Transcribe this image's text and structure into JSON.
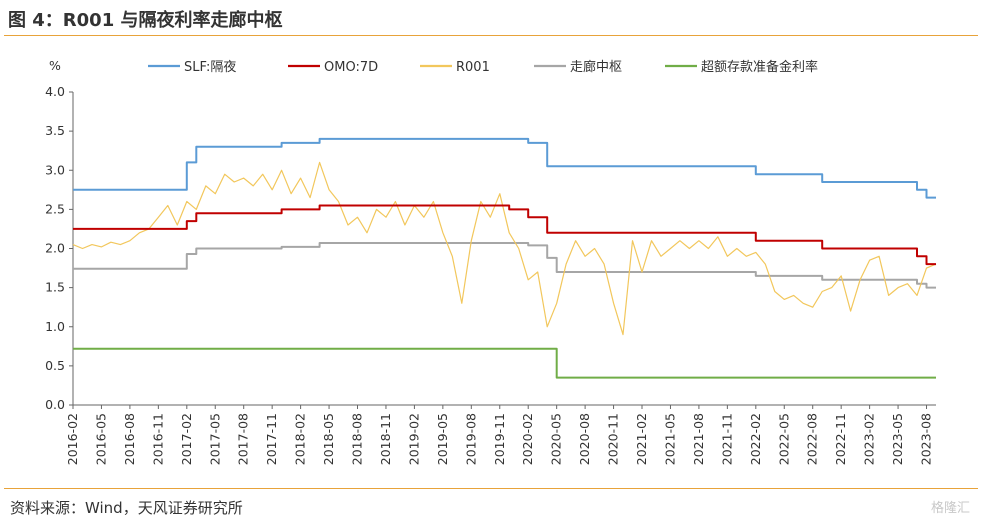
{
  "header": {
    "title": "图 4：R001 与隔夜利率走廊中枢"
  },
  "footer": {
    "source": "资料来源：Wind，天风证券研究所",
    "watermark": "格隆汇"
  },
  "chart_data": {
    "type": "line",
    "ylabel": "%",
    "ylim": [
      0,
      4.0
    ],
    "yticks": [
      "0.0",
      "0.5",
      "1.0",
      "1.5",
      "2.0",
      "2.5",
      "3.0",
      "3.5",
      "4.0"
    ],
    "xlim": [
      "2016-02",
      "2023-09"
    ],
    "xticks": [
      "2016-02",
      "2016-05",
      "2016-08",
      "2016-11",
      "2017-02",
      "2017-05",
      "2017-08",
      "2017-11",
      "2018-02",
      "2018-05",
      "2018-08",
      "2018-11",
      "2019-02",
      "2019-05",
      "2019-08",
      "2019-11",
      "2020-02",
      "2020-05",
      "2020-08",
      "2020-11",
      "2021-02",
      "2021-05",
      "2021-08",
      "2021-11",
      "2022-02",
      "2022-05",
      "2022-08",
      "2022-11",
      "2023-02",
      "2023-05",
      "2023-08"
    ],
    "legend_position": "top",
    "grid": false,
    "series": [
      {
        "name": "SLF:隔夜",
        "color": "#5B9BD5",
        "step": true,
        "points": [
          [
            "2016-02",
            2.75
          ],
          [
            "2017-01",
            2.75
          ],
          [
            "2017-02",
            3.1
          ],
          [
            "2017-03",
            3.3
          ],
          [
            "2017-12",
            3.35
          ],
          [
            "2018-03",
            3.35
          ],
          [
            "2018-04",
            3.4
          ],
          [
            "2020-01",
            3.4
          ],
          [
            "2020-02",
            3.35
          ],
          [
            "2020-04",
            3.05
          ],
          [
            "2022-01",
            3.05
          ],
          [
            "2022-02",
            2.95
          ],
          [
            "2022-08",
            2.95
          ],
          [
            "2022-09",
            2.85
          ],
          [
            "2023-06",
            2.85
          ],
          [
            "2023-07",
            2.75
          ],
          [
            "2023-08",
            2.65
          ],
          [
            "2023-09",
            2.65
          ]
        ]
      },
      {
        "name": "OMO:7D",
        "color": "#C00000",
        "step": true,
        "points": [
          [
            "2016-02",
            2.25
          ],
          [
            "2017-01",
            2.25
          ],
          [
            "2017-02",
            2.35
          ],
          [
            "2017-03",
            2.45
          ],
          [
            "2017-12",
            2.5
          ],
          [
            "2018-03",
            2.5
          ],
          [
            "2018-04",
            2.55
          ],
          [
            "2019-11",
            2.55
          ],
          [
            "2019-12",
            2.5
          ],
          [
            "2020-02",
            2.4
          ],
          [
            "2020-04",
            2.2
          ],
          [
            "2022-01",
            2.2
          ],
          [
            "2022-02",
            2.1
          ],
          [
            "2022-08",
            2.1
          ],
          [
            "2022-09",
            2.0
          ],
          [
            "2023-06",
            2.0
          ],
          [
            "2023-07",
            1.9
          ],
          [
            "2023-08",
            1.8
          ],
          [
            "2023-09",
            1.8
          ]
        ]
      },
      {
        "name": "R001",
        "color": "#F2C75C",
        "step": false,
        "points": [
          [
            "2016-02",
            2.05
          ],
          [
            "2016-03",
            2.0
          ],
          [
            "2016-04",
            2.05
          ],
          [
            "2016-05",
            2.02
          ],
          [
            "2016-06",
            2.08
          ],
          [
            "2016-07",
            2.05
          ],
          [
            "2016-08",
            2.1
          ],
          [
            "2016-09",
            2.2
          ],
          [
            "2016-10",
            2.25
          ],
          [
            "2016-11",
            2.4
          ],
          [
            "2016-12",
            2.55
          ],
          [
            "2017-01",
            2.3
          ],
          [
            "2017-02",
            2.6
          ],
          [
            "2017-03",
            2.5
          ],
          [
            "2017-04",
            2.8
          ],
          [
            "2017-05",
            2.7
          ],
          [
            "2017-06",
            2.95
          ],
          [
            "2017-07",
            2.85
          ],
          [
            "2017-08",
            2.9
          ],
          [
            "2017-09",
            2.8
          ],
          [
            "2017-10",
            2.95
          ],
          [
            "2017-11",
            2.75
          ],
          [
            "2017-12",
            3.0
          ],
          [
            "2018-01",
            2.7
          ],
          [
            "2018-02",
            2.9
          ],
          [
            "2018-03",
            2.65
          ],
          [
            "2018-04",
            3.1
          ],
          [
            "2018-05",
            2.75
          ],
          [
            "2018-06",
            2.6
          ],
          [
            "2018-07",
            2.3
          ],
          [
            "2018-08",
            2.4
          ],
          [
            "2018-09",
            2.2
          ],
          [
            "2018-10",
            2.5
          ],
          [
            "2018-11",
            2.4
          ],
          [
            "2018-12",
            2.6
          ],
          [
            "2019-01",
            2.3
          ],
          [
            "2019-02",
            2.55
          ],
          [
            "2019-03",
            2.4
          ],
          [
            "2019-04",
            2.6
          ],
          [
            "2019-05",
            2.2
          ],
          [
            "2019-06",
            1.9
          ],
          [
            "2019-07",
            1.3
          ],
          [
            "2019-08",
            2.1
          ],
          [
            "2019-09",
            2.6
          ],
          [
            "2019-10",
            2.4
          ],
          [
            "2019-11",
            2.7
          ],
          [
            "2019-12",
            2.2
          ],
          [
            "2020-01",
            2.0
          ],
          [
            "2020-02",
            1.6
          ],
          [
            "2020-03",
            1.7
          ],
          [
            "2020-04",
            1.0
          ],
          [
            "2020-05",
            1.3
          ],
          [
            "2020-06",
            1.8
          ],
          [
            "2020-07",
            2.1
          ],
          [
            "2020-08",
            1.9
          ],
          [
            "2020-09",
            2.0
          ],
          [
            "2020-10",
            1.8
          ],
          [
            "2020-11",
            1.3
          ],
          [
            "2020-12",
            0.9
          ],
          [
            "2021-01",
            2.1
          ],
          [
            "2021-02",
            1.7
          ],
          [
            "2021-03",
            2.1
          ],
          [
            "2021-04",
            1.9
          ],
          [
            "2021-05",
            2.0
          ],
          [
            "2021-06",
            2.1
          ],
          [
            "2021-07",
            2.0
          ],
          [
            "2021-08",
            2.1
          ],
          [
            "2021-09",
            2.0
          ],
          [
            "2021-10",
            2.15
          ],
          [
            "2021-11",
            1.9
          ],
          [
            "2021-12",
            2.0
          ],
          [
            "2022-01",
            1.9
          ],
          [
            "2022-02",
            1.95
          ],
          [
            "2022-03",
            1.8
          ],
          [
            "2022-04",
            1.45
          ],
          [
            "2022-05",
            1.35
          ],
          [
            "2022-06",
            1.4
          ],
          [
            "2022-07",
            1.3
          ],
          [
            "2022-08",
            1.25
          ],
          [
            "2022-09",
            1.45
          ],
          [
            "2022-10",
            1.5
          ],
          [
            "2022-11",
            1.65
          ],
          [
            "2022-12",
            1.2
          ],
          [
            "2023-01",
            1.6
          ],
          [
            "2023-02",
            1.85
          ],
          [
            "2023-03",
            1.9
          ],
          [
            "2023-04",
            1.4
          ],
          [
            "2023-05",
            1.5
          ],
          [
            "2023-06",
            1.55
          ],
          [
            "2023-07",
            1.4
          ],
          [
            "2023-08",
            1.75
          ],
          [
            "2023-09",
            1.8
          ]
        ]
      },
      {
        "name": "走廊中枢",
        "color": "#A6A6A6",
        "step": true,
        "points": [
          [
            "2016-02",
            1.74
          ],
          [
            "2017-01",
            1.74
          ],
          [
            "2017-02",
            1.93
          ],
          [
            "2017-03",
            2.0
          ],
          [
            "2017-12",
            2.02
          ],
          [
            "2018-03",
            2.02
          ],
          [
            "2018-04",
            2.07
          ],
          [
            "2020-01",
            2.07
          ],
          [
            "2020-02",
            2.04
          ],
          [
            "2020-04",
            1.88
          ],
          [
            "2020-05",
            1.7
          ],
          [
            "2022-01",
            1.7
          ],
          [
            "2022-02",
            1.65
          ],
          [
            "2022-08",
            1.65
          ],
          [
            "2022-09",
            1.6
          ],
          [
            "2023-06",
            1.6
          ],
          [
            "2023-07",
            1.55
          ],
          [
            "2023-08",
            1.5
          ],
          [
            "2023-09",
            1.5
          ]
        ]
      },
      {
        "name": "超额存款准备金利率",
        "color": "#70AD47",
        "step": true,
        "points": [
          [
            "2016-02",
            0.72
          ],
          [
            "2020-04",
            0.72
          ],
          [
            "2020-05",
            0.35
          ],
          [
            "2023-09",
            0.35
          ]
        ]
      }
    ]
  }
}
